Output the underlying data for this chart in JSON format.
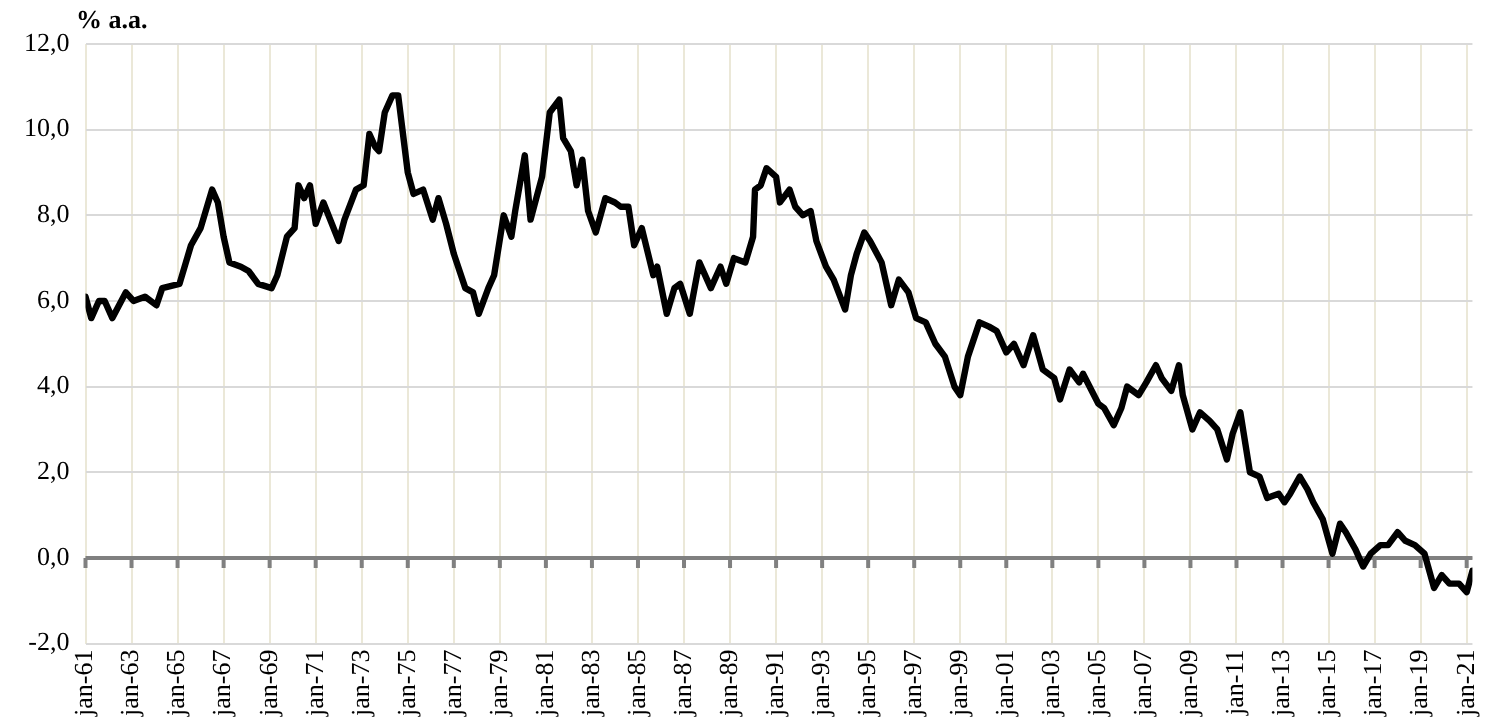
{
  "chart_data": {
    "type": "line",
    "ylabel": "% a.a.",
    "grid": true,
    "legend": false,
    "marker": "none",
    "line_style": "solid",
    "xlim": [
      "1961-01",
      "2021-04"
    ],
    "xticks": [
      {
        "value": "1961-01",
        "label": "jan-61"
      },
      {
        "value": "1963-01",
        "label": "jan-63"
      },
      {
        "value": "1965-01",
        "label": "jan-65"
      },
      {
        "value": "1967-01",
        "label": "jan-67"
      },
      {
        "value": "1969-01",
        "label": "jan-69"
      },
      {
        "value": "1971-01",
        "label": "jan-71"
      },
      {
        "value": "1973-01",
        "label": "jan-73"
      },
      {
        "value": "1975-01",
        "label": "jan-75"
      },
      {
        "value": "1977-01",
        "label": "jan-77"
      },
      {
        "value": "1979-01",
        "label": "jan-79"
      },
      {
        "value": "1981-01",
        "label": "jan-81"
      },
      {
        "value": "1983-01",
        "label": "jan-83"
      },
      {
        "value": "1985-01",
        "label": "jan-85"
      },
      {
        "value": "1987-01",
        "label": "jan-87"
      },
      {
        "value": "1989-01",
        "label": "jan-89"
      },
      {
        "value": "1991-01",
        "label": "jan-91"
      },
      {
        "value": "1993-01",
        "label": "jan-93"
      },
      {
        "value": "1995-01",
        "label": "jan-95"
      },
      {
        "value": "1997-01",
        "label": "jan-97"
      },
      {
        "value": "1999-01",
        "label": "jan-99"
      },
      {
        "value": "2001-01",
        "label": "jan-01"
      },
      {
        "value": "2003-01",
        "label": "jan-03"
      },
      {
        "value": "2005-01",
        "label": "jan-05"
      },
      {
        "value": "2007-01",
        "label": "jan-07"
      },
      {
        "value": "2009-01",
        "label": "jan-09"
      },
      {
        "value": "2011-01",
        "label": "jan-11"
      },
      {
        "value": "2013-01",
        "label": "jan-13"
      },
      {
        "value": "2015-01",
        "label": "jan-15"
      },
      {
        "value": "2017-01",
        "label": "jan-17"
      },
      {
        "value": "2019-01",
        "label": "jan-19"
      },
      {
        "value": "2021-01",
        "label": "jan-21"
      }
    ],
    "ylim": [
      -2,
      12
    ],
    "yticks": [
      {
        "value": -2,
        "label": "-2,0"
      },
      {
        "value": 0,
        "label": "0,0"
      },
      {
        "value": 2,
        "label": "2,0"
      },
      {
        "value": 4,
        "label": "4,0"
      },
      {
        "value": 6,
        "label": "6,0"
      },
      {
        "value": 8,
        "label": "8,0"
      },
      {
        "value": 10,
        "label": "10,0"
      },
      {
        "value": 12,
        "label": "12,0"
      }
    ],
    "ref_lines": [
      {
        "axis": "y",
        "value": 0,
        "color": "#808080"
      }
    ],
    "series": [
      {
        "color": "#000000",
        "x": [
          "1961-01",
          "1961-04",
          "1961-08",
          "1961-11",
          "1962-03",
          "1962-10",
          "1963-02",
          "1963-08",
          "1964-02",
          "1964-05",
          "1965-02",
          "1965-08",
          "1966-01",
          "1966-07",
          "1966-10",
          "1967-01",
          "1967-04",
          "1967-10",
          "1968-02",
          "1968-07",
          "1969-02",
          "1969-05",
          "1969-10",
          "1970-02",
          "1970-04",
          "1970-07",
          "1970-10",
          "1971-01",
          "1971-05",
          "1972-01",
          "1972-04",
          "1972-10",
          "1973-02",
          "1973-05",
          "1973-08",
          "1973-10",
          "1974-01",
          "1974-05",
          "1974-08",
          "1975-01",
          "1975-04",
          "1975-09",
          "1976-02",
          "1976-05",
          "1976-09",
          "1977-01",
          "1977-07",
          "1977-11",
          "1978-02",
          "1978-07",
          "1978-10",
          "1979-03",
          "1979-07",
          "1979-09",
          "1980-02",
          "1980-05",
          "1980-11",
          "1981-03",
          "1981-08",
          "1981-10",
          "1982-02",
          "1982-05",
          "1982-08",
          "1982-11",
          "1983-03",
          "1983-08",
          "1984-01",
          "1984-04",
          "1984-08",
          "1984-11",
          "1985-03",
          "1985-09",
          "1985-11",
          "1986-04",
          "1986-08",
          "1986-11",
          "1987-04",
          "1987-09",
          "1988-03",
          "1988-08",
          "1988-11",
          "1989-03",
          "1989-09",
          "1990-01",
          "1990-02",
          "1990-05",
          "1990-08",
          "1991-01",
          "1991-03",
          "1991-08",
          "1991-11",
          "1992-03",
          "1992-07",
          "1992-10",
          "1993-03",
          "1993-07",
          "1994-01",
          "1994-04",
          "1994-07",
          "1994-11",
          "1995-02",
          "1995-08",
          "1996-01",
          "1996-05",
          "1996-10",
          "1997-02",
          "1997-07",
          "1997-12",
          "1998-05",
          "1998-10",
          "1999-01",
          "1999-05",
          "1999-11",
          "2000-04",
          "2000-08",
          "2001-01",
          "2001-05",
          "2001-10",
          "2002-03",
          "2002-08",
          "2003-02",
          "2003-05",
          "2003-10",
          "2004-03",
          "2004-05",
          "2005-01",
          "2005-04",
          "2005-09",
          "2006-01",
          "2006-04",
          "2006-10",
          "2007-02",
          "2007-07",
          "2007-10",
          "2008-03",
          "2008-07",
          "2008-09",
          "2009-02",
          "2009-06",
          "2009-11",
          "2010-03",
          "2010-08",
          "2010-11",
          "2011-03",
          "2011-08",
          "2012-01",
          "2012-05",
          "2012-11",
          "2013-02",
          "2013-05",
          "2013-10",
          "2014-02",
          "2014-05",
          "2014-10",
          "2015-03",
          "2015-07",
          "2015-10",
          "2016-03",
          "2016-07",
          "2016-11",
          "2017-04",
          "2017-08",
          "2018-01",
          "2018-05",
          "2018-10",
          "2019-03",
          "2019-08",
          "2019-12",
          "2020-04",
          "2020-09",
          "2021-01",
          "2021-04"
        ],
        "values": [
          6.1,
          5.6,
          6.0,
          6.0,
          5.6,
          6.2,
          6.0,
          6.1,
          5.9,
          6.3,
          6.4,
          7.3,
          7.7,
          8.6,
          8.3,
          7.5,
          6.9,
          6.8,
          6.7,
          6.4,
          6.3,
          6.6,
          7.5,
          7.7,
          8.7,
          8.4,
          8.7,
          7.8,
          8.3,
          7.4,
          7.9,
          8.6,
          8.7,
          9.9,
          9.6,
          9.5,
          10.4,
          10.8,
          10.8,
          9.0,
          8.5,
          8.6,
          7.9,
          8.4,
          7.8,
          7.1,
          6.3,
          6.2,
          5.7,
          6.3,
          6.6,
          8.0,
          7.5,
          8.1,
          9.4,
          7.9,
          8.9,
          10.4,
          10.7,
          9.8,
          9.5,
          8.7,
          9.3,
          8.1,
          7.6,
          8.4,
          8.3,
          8.2,
          8.2,
          7.3,
          7.7,
          6.6,
          6.8,
          5.7,
          6.3,
          6.4,
          5.7,
          6.9,
          6.3,
          6.8,
          6.4,
          7.0,
          6.9,
          7.5,
          8.6,
          8.7,
          9.1,
          8.9,
          8.3,
          8.6,
          8.2,
          8.0,
          8.1,
          7.4,
          6.8,
          6.5,
          5.8,
          6.6,
          7.1,
          7.6,
          7.4,
          6.9,
          5.9,
          6.5,
          6.2,
          5.6,
          5.5,
          5.0,
          4.7,
          4.0,
          3.8,
          4.7,
          5.5,
          5.4,
          5.3,
          4.8,
          5.0,
          4.5,
          5.2,
          4.4,
          4.2,
          3.7,
          4.4,
          4.1,
          4.3,
          3.6,
          3.5,
          3.1,
          3.5,
          4.0,
          3.8,
          4.1,
          4.5,
          4.2,
          3.9,
          4.5,
          3.8,
          3.0,
          3.4,
          3.2,
          3.0,
          2.3,
          2.9,
          3.4,
          2.0,
          1.9,
          1.4,
          1.5,
          1.3,
          1.5,
          1.9,
          1.6,
          1.3,
          0.9,
          0.1,
          0.8,
          0.6,
          0.2,
          -0.2,
          0.1,
          0.3,
          0.3,
          0.6,
          0.4,
          0.3,
          0.1,
          -0.7,
          -0.4,
          -0.6,
          -0.6,
          -0.8,
          -0.3
        ]
      }
    ]
  }
}
